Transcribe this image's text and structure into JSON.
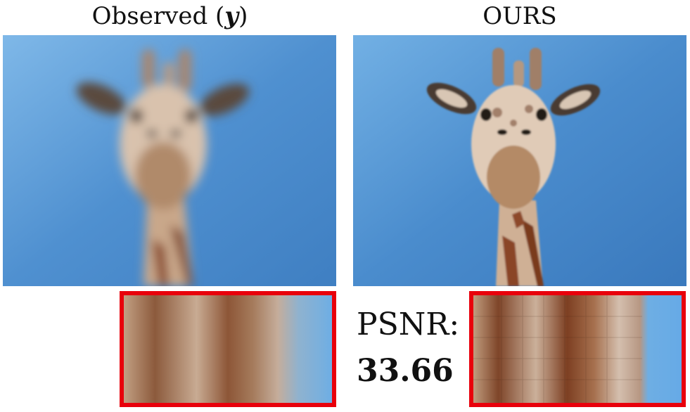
{
  "figure": {
    "left_title": "Observed (",
    "left_title_symbol": "y",
    "left_title_close": ")",
    "right_title": "OURS",
    "psnr_label": "PSNR:",
    "psnr_value": "33.66",
    "highlight_color": "#e8000b",
    "sky_color": "#4d8fd0"
  }
}
